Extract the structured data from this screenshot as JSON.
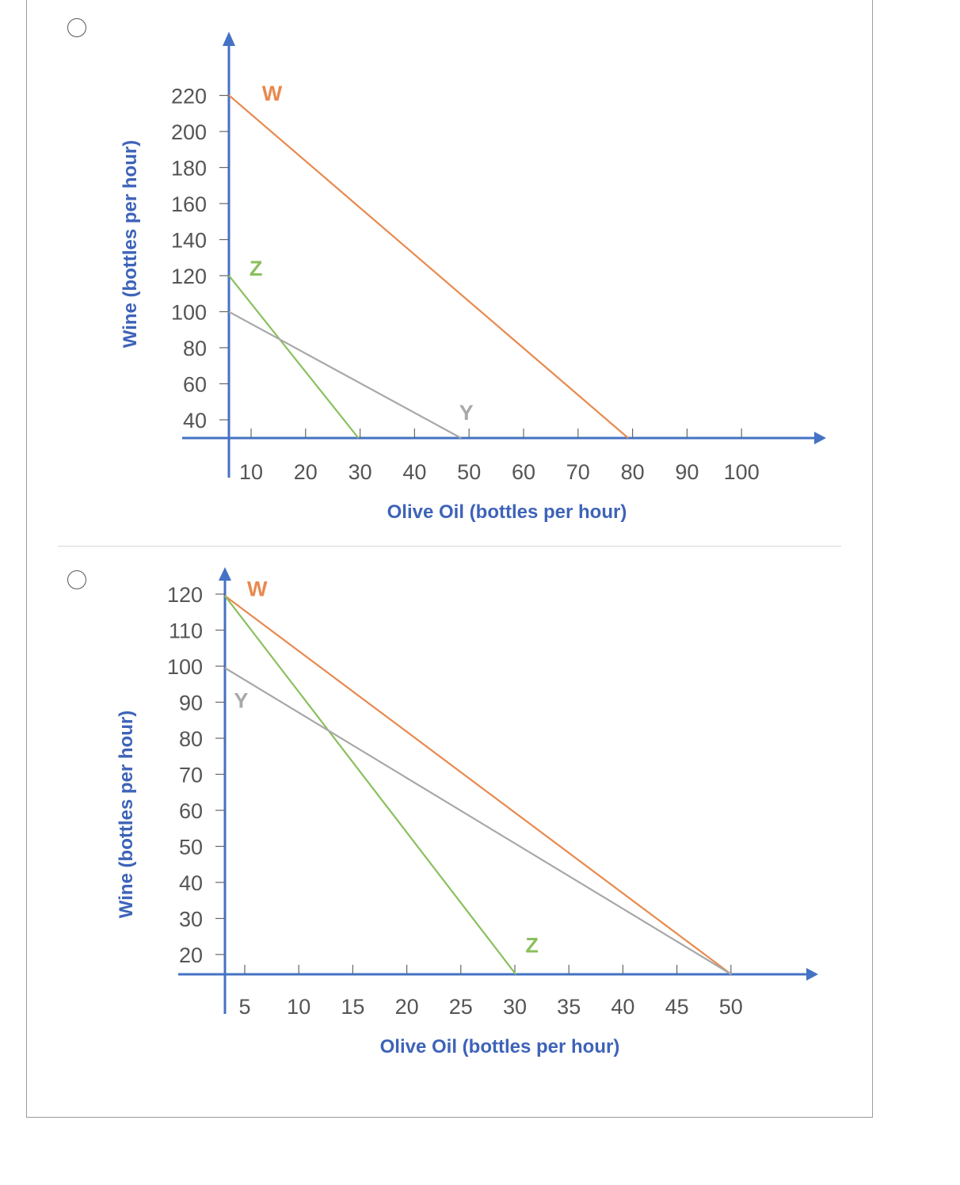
{
  "options": [
    {
      "label": "",
      "chart_data": {
        "type": "line",
        "xlabel": "Olive Oil (bottles per hour)",
        "ylabel": "Wine (bottles per hour)",
        "xticks": [
          10,
          20,
          30,
          40,
          50,
          60,
          70,
          80,
          90,
          100
        ],
        "yticks": [
          40,
          60,
          80,
          100,
          120,
          140,
          160,
          180,
          200,
          220
        ],
        "xlim": [
          6,
          106
        ],
        "ylim": [
          30,
          240
        ],
        "series": [
          {
            "name": "W",
            "color": "#e8894e",
            "x": [
              6,
              80
            ],
            "y": [
              220,
              30
            ],
            "label_at": [
              14,
              217
            ]
          },
          {
            "name": "Z",
            "color": "#8bbf5d",
            "x": [
              6,
              30
            ],
            "y": [
              120,
              30
            ],
            "label_at": [
              11,
              120
            ]
          },
          {
            "name": "Y",
            "color": "#a8a8a8",
            "x": [
              6,
              49
            ],
            "y": [
              100,
              30
            ],
            "label_at": [
              50,
              40
            ]
          }
        ],
        "grid": false,
        "legend": "none"
      }
    },
    {
      "label": "",
      "chart_data": {
        "type": "line",
        "xlabel": "Olive Oil (bottles per hour)",
        "ylabel": "Wine (bottles per hour)",
        "xticks": [
          5,
          10,
          15,
          20,
          25,
          30,
          35,
          40,
          45,
          50
        ],
        "yticks": [
          20,
          30,
          40,
          50,
          60,
          70,
          80,
          90,
          100,
          110,
          120
        ],
        "xlim": [
          3,
          53
        ],
        "ylim": [
          15,
          127
        ],
        "series": [
          {
            "name": "W",
            "color": "#e8894e",
            "x": [
              3,
              50
            ],
            "y": [
              120,
              15
            ],
            "label_at": [
              6,
              120
            ]
          },
          {
            "name": "Z",
            "color": "#8bbf5d",
            "x": [
              3,
              30
            ],
            "y": [
              120,
              15
            ],
            "label_at": [
              31.5,
              21
            ]
          },
          {
            "name": "Y",
            "color": "#a8a8a8",
            "x": [
              3,
              50
            ],
            "y": [
              100,
              15
            ],
            "label_at": [
              4.5,
              89
            ]
          }
        ],
        "grid": false,
        "legend": "none"
      }
    }
  ]
}
